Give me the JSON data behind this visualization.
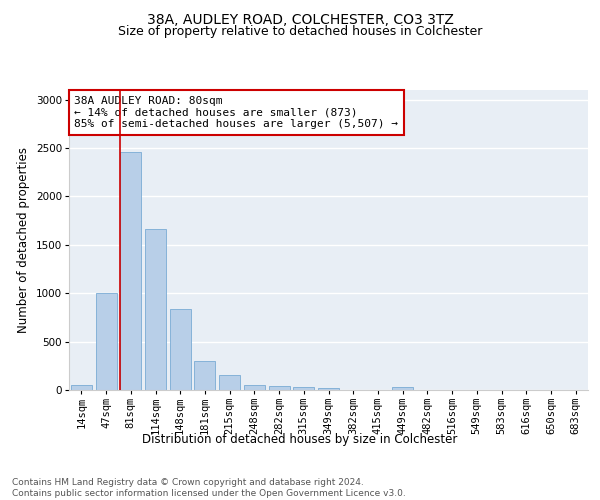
{
  "title1": "38A, AUDLEY ROAD, COLCHESTER, CO3 3TZ",
  "title2": "Size of property relative to detached houses in Colchester",
  "xlabel": "Distribution of detached houses by size in Colchester",
  "ylabel": "Number of detached properties",
  "categories": [
    "14sqm",
    "47sqm",
    "81sqm",
    "114sqm",
    "148sqm",
    "181sqm",
    "215sqm",
    "248sqm",
    "282sqm",
    "315sqm",
    "349sqm",
    "382sqm",
    "415sqm",
    "449sqm",
    "482sqm",
    "516sqm",
    "549sqm",
    "583sqm",
    "616sqm",
    "650sqm",
    "683sqm"
  ],
  "values": [
    50,
    1000,
    2460,
    1660,
    840,
    295,
    150,
    55,
    40,
    35,
    20,
    5,
    0,
    35,
    0,
    0,
    0,
    0,
    0,
    0,
    0
  ],
  "bar_color": "#b8cfe8",
  "bar_edge_color": "#7aabd4",
  "vline_color": "#cc0000",
  "annotation_text": "38A AUDLEY ROAD: 80sqm\n← 14% of detached houses are smaller (873)\n85% of semi-detached houses are larger (5,507) →",
  "annotation_box_color": "#ffffff",
  "annotation_box_edge": "#cc0000",
  "ylim": [
    0,
    3100
  ],
  "yticks": [
    0,
    500,
    1000,
    1500,
    2000,
    2500,
    3000
  ],
  "background_color": "#e8eef5",
  "title_fontsize": 10,
  "subtitle_fontsize": 9,
  "annotation_fontsize": 8,
  "axis_label_fontsize": 8.5,
  "tick_fontsize": 7.5,
  "footer_fontsize": 6.5
}
